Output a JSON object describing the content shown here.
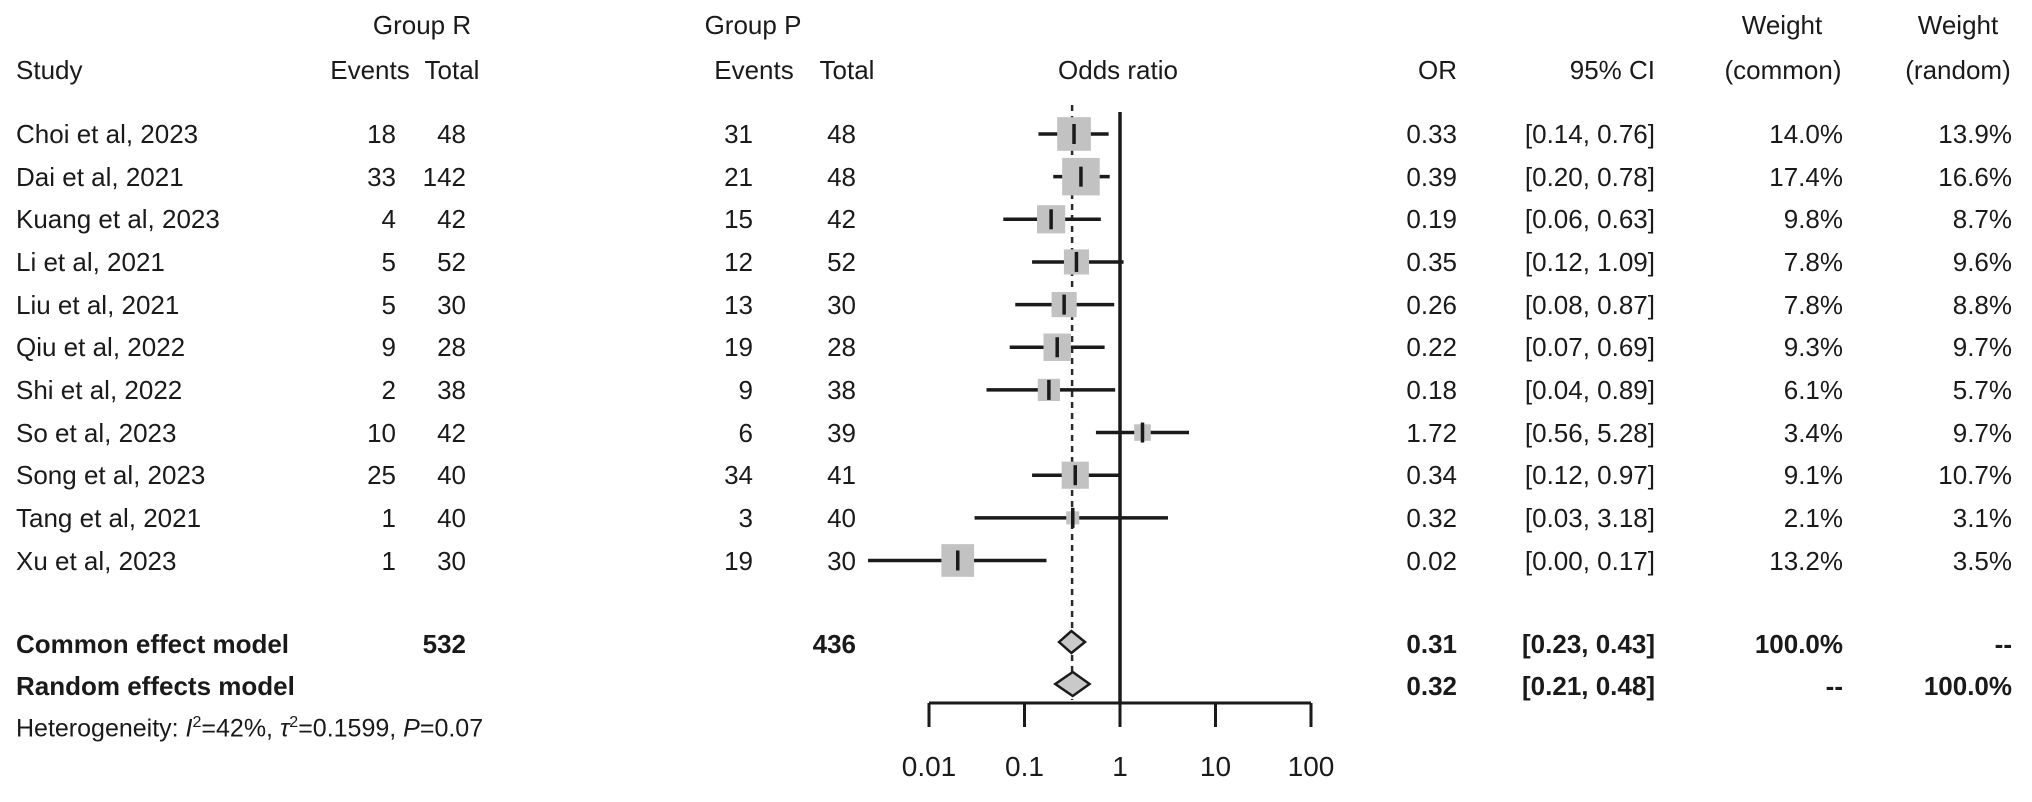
{
  "header": {
    "group_r": "Group R",
    "group_p": "Group P",
    "study": "Study",
    "events_r": "Events",
    "total_r": "Total",
    "events_p": "Events",
    "total_p": "Total",
    "odds_ratio": "Odds ratio",
    "or": "OR",
    "ci": "95% CI",
    "weight_common_line1": "Weight",
    "weight_common_line2": "(common)",
    "weight_random_line1": "Weight",
    "weight_random_line2": "(random)"
  },
  "chart_data": {
    "type": "forest",
    "effect_measure": "Odds ratio",
    "x_axis": {
      "scale": "log",
      "tick_labels": [
        "0.01",
        "0.1",
        "1",
        "10",
        "100"
      ],
      "tick_values": [
        0.01,
        0.1,
        1,
        10,
        100
      ],
      "reference_value": 1,
      "pooled_value": 0.315
    },
    "studies": [
      {
        "study": "Choi et al, 2023",
        "events_r": "18",
        "total_r": "48",
        "events_p": "31",
        "total_p": "48",
        "or": 0.33,
        "ci_low": 0.14,
        "ci_high": 0.76,
        "or_label": "0.33",
        "ci_label": "[0.14, 0.76]",
        "weight_common": "14.0%",
        "weight_random": "13.9%",
        "weight_common_value": 14.0
      },
      {
        "study": "Dai et al, 2021",
        "events_r": "33",
        "total_r": "142",
        "events_p": "21",
        "total_p": "48",
        "or": 0.39,
        "ci_low": 0.2,
        "ci_high": 0.78,
        "or_label": "0.39",
        "ci_label": "[0.20, 0.78]",
        "weight_common": "17.4%",
        "weight_random": "16.6%",
        "weight_common_value": 17.4
      },
      {
        "study": "Kuang et al, 2023",
        "events_r": "4",
        "total_r": "42",
        "events_p": "15",
        "total_p": "42",
        "or": 0.19,
        "ci_low": 0.06,
        "ci_high": 0.63,
        "or_label": "0.19",
        "ci_label": "[0.06, 0.63]",
        "weight_common": "9.8%",
        "weight_random": "8.7%",
        "weight_common_value": 9.8
      },
      {
        "study": "Li et al, 2021",
        "events_r": "5",
        "total_r": "52",
        "events_p": "12",
        "total_p": "52",
        "or": 0.35,
        "ci_low": 0.12,
        "ci_high": 1.09,
        "or_label": "0.35",
        "ci_label": "[0.12, 1.09]",
        "weight_common": "7.8%",
        "weight_random": "9.6%",
        "weight_common_value": 7.8
      },
      {
        "study": "Liu et al, 2021",
        "events_r": "5",
        "total_r": "30",
        "events_p": "13",
        "total_p": "30",
        "or": 0.26,
        "ci_low": 0.08,
        "ci_high": 0.87,
        "or_label": "0.26",
        "ci_label": "[0.08, 0.87]",
        "weight_common": "7.8%",
        "weight_random": "8.8%",
        "weight_common_value": 7.8
      },
      {
        "study": "Qiu et al, 2022",
        "events_r": "9",
        "total_r": "28",
        "events_p": "19",
        "total_p": "28",
        "or": 0.22,
        "ci_low": 0.07,
        "ci_high": 0.69,
        "or_label": "0.22",
        "ci_label": "[0.07, 0.69]",
        "weight_common": "9.3%",
        "weight_random": "9.7%",
        "weight_common_value": 9.3
      },
      {
        "study": "Shi et al, 2022",
        "events_r": "2",
        "total_r": "38",
        "events_p": "9",
        "total_p": "38",
        "or": 0.18,
        "ci_low": 0.04,
        "ci_high": 0.89,
        "or_label": "0.18",
        "ci_label": "[0.04, 0.89]",
        "weight_common": "6.1%",
        "weight_random": "5.7%",
        "weight_common_value": 6.1
      },
      {
        "study": "So et al, 2023",
        "events_r": "10",
        "total_r": "42",
        "events_p": "6",
        "total_p": "39",
        "or": 1.72,
        "ci_low": 0.56,
        "ci_high": 5.28,
        "or_label": "1.72",
        "ci_label": "[0.56, 5.28]",
        "weight_common": "3.4%",
        "weight_random": "9.7%",
        "weight_common_value": 3.4
      },
      {
        "study": "Song et al, 2023",
        "events_r": "25",
        "total_r": "40",
        "events_p": "34",
        "total_p": "41",
        "or": 0.34,
        "ci_low": 0.12,
        "ci_high": 0.97,
        "or_label": "0.34",
        "ci_label": "[0.12, 0.97]",
        "weight_common": "9.1%",
        "weight_random": "10.7%",
        "weight_common_value": 9.1
      },
      {
        "study": "Tang et al, 2021",
        "events_r": "1",
        "total_r": "40",
        "events_p": "3",
        "total_p": "40",
        "or": 0.32,
        "ci_low": 0.03,
        "ci_high": 3.18,
        "or_label": "0.32",
        "ci_label": "[0.03, 3.18]",
        "weight_common": "2.1%",
        "weight_random": "3.1%",
        "weight_common_value": 2.1
      },
      {
        "study": "Xu et al, 2023",
        "events_r": "1",
        "total_r": "30",
        "events_p": "19",
        "total_p": "30",
        "or": 0.02,
        "ci_low": 0.0,
        "ci_high": 0.17,
        "or_label": "0.02",
        "ci_label": "[0.00, 0.17]",
        "weight_common": "13.2%",
        "weight_random": "3.5%",
        "weight_common_value": 13.2
      }
    ],
    "summaries": [
      {
        "label": "Common effect model",
        "total_r": "532",
        "total_p": "436",
        "or": 0.31,
        "ci_low": 0.23,
        "ci_high": 0.43,
        "or_label": "0.31",
        "ci_label": "[0.23, 0.43]",
        "weight_common": "100.0%",
        "weight_random": "--"
      },
      {
        "label": "Random effects model",
        "total_r": "",
        "total_p": "",
        "or": 0.32,
        "ci_low": 0.21,
        "ci_high": 0.48,
        "or_label": "0.32",
        "ci_label": "[0.21, 0.48]",
        "weight_common": "--",
        "weight_random": "100.0%"
      }
    ],
    "heterogeneity": {
      "prefix": "Heterogeneity: ",
      "i_symbol": "I",
      "i_sup": "2",
      "i_value": "=42%, ",
      "tau_symbol": "τ",
      "tau_sup": "2",
      "tau_value": "=0.1599, ",
      "p_symbol": "P",
      "p_value": "=0.07"
    }
  },
  "colors": {
    "square": "#c2c2c2",
    "diamond_fill": "#c9c9c9",
    "line": "#1a1a1a",
    "text": "#1a1a1a"
  }
}
